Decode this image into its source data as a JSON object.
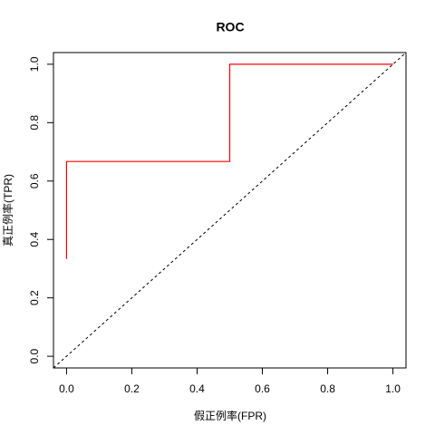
{
  "chart_data": {
    "type": "line",
    "title": "ROC",
    "x_label": "假正例率(FPR)",
    "y_label": "真正例率(TPR)",
    "x": [
      0,
      0,
      0.5,
      0.5,
      1
    ],
    "values": [
      0.333,
      0.667,
      0.667,
      1,
      1
    ],
    "color": "#ff0000",
    "reference_line": {
      "intercept": 0,
      "slope": 1,
      "style": "dashed",
      "color": "#000000"
    },
    "xlim": [
      -0.04,
      1.04
    ],
    "ylim": [
      -0.04,
      1.04
    ],
    "xticks": [
      {
        "value": 0,
        "label": "0.0"
      },
      0.2,
      0.4,
      0.6,
      0.8,
      {
        "value": 1,
        "label": "1.0"
      }
    ],
    "yticks": [
      {
        "value": 0,
        "label": "0.0"
      },
      0.2,
      0.4,
      0.6,
      0.8,
      {
        "value": 1,
        "label": "1.0"
      }
    ]
  }
}
